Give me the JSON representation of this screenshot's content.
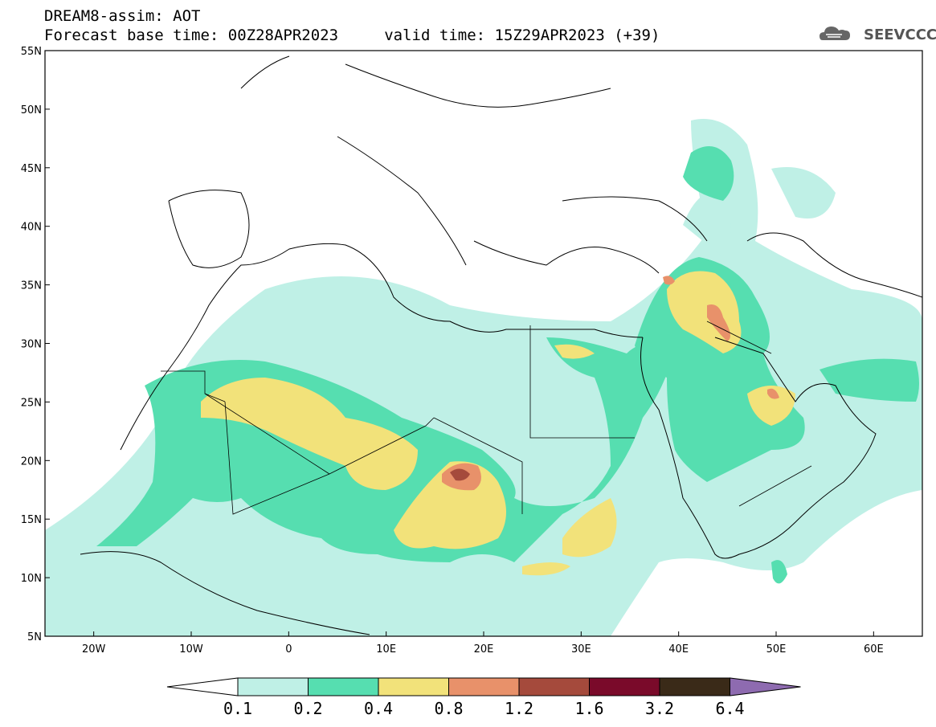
{
  "header": {
    "title": "DREAM8-assim: AOT",
    "subtitle": "Forecast base time: 00Z28APR2023     valid time: 15Z29APR2023 (+39)"
  },
  "logo": {
    "text": "SEEVCCC",
    "icon": "cloud-icon"
  },
  "map": {
    "lon_range": [
      -25,
      65
    ],
    "lat_range": [
      5,
      55
    ],
    "lat_ticks": [
      "5N",
      "10N",
      "15N",
      "20N",
      "25N",
      "30N",
      "35N",
      "40N",
      "45N",
      "50N",
      "55N"
    ],
    "lon_ticks": [
      "20W",
      "10W",
      "0",
      "10E",
      "20E",
      "30E",
      "40E",
      "50E",
      "60E"
    ]
  },
  "colorbar": {
    "labels": [
      "0.1",
      "0.2",
      "0.4",
      "0.8",
      "1.2",
      "1.6",
      "3.2",
      "6.4"
    ],
    "colors": [
      "#ffffff",
      "#bff0e6",
      "#56deb0",
      "#f2e27a",
      "#e8916a",
      "#a54a3c",
      "#7a0a2a",
      "#3a2a18",
      "#8e6bb0"
    ]
  },
  "aot_colors": {
    "c1": "#bff0e6",
    "c2": "#56deb0",
    "c3": "#f2e27a",
    "c4": "#e8916a",
    "c5": "#a54a3c"
  }
}
